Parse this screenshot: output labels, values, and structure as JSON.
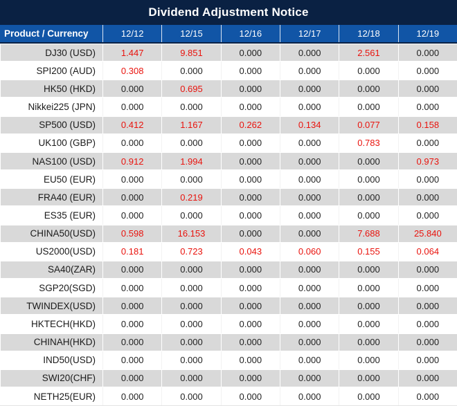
{
  "title": "Dividend Adjustment Notice",
  "colors": {
    "title_bar_bg": "#0a2143",
    "header_row_bg": "#1155a6",
    "stripe_row_bg": "#d9d9d9",
    "white_row_bg": "#ffffff",
    "header_text": "#ffffff",
    "value_zero_text": "#222222",
    "value_nonzero_text": "#e9130d"
  },
  "chart_data": {
    "type": "table",
    "title": "Dividend Adjustment Notice",
    "columns": [
      "Product / Currency",
      "12/12",
      "12/15",
      "12/16",
      "12/17",
      "12/18",
      "12/19"
    ],
    "rows": [
      {
        "product": "DJ30 (USD)",
        "values": [
          "1.447",
          "9.851",
          "0.000",
          "0.000",
          "2.561",
          "0.000"
        ]
      },
      {
        "product": "SPI200 (AUD)",
        "values": [
          "0.308",
          "0.000",
          "0.000",
          "0.000",
          "0.000",
          "0.000"
        ]
      },
      {
        "product": "HK50 (HKD)",
        "values": [
          "0.000",
          "0.695",
          "0.000",
          "0.000",
          "0.000",
          "0.000"
        ]
      },
      {
        "product": "Nikkei225 (JPN)",
        "values": [
          "0.000",
          "0.000",
          "0.000",
          "0.000",
          "0.000",
          "0.000"
        ]
      },
      {
        "product": "SP500 (USD)",
        "values": [
          "0.412",
          "1.167",
          "0.262",
          "0.134",
          "0.077",
          "0.158"
        ]
      },
      {
        "product": "UK100 (GBP)",
        "values": [
          "0.000",
          "0.000",
          "0.000",
          "0.000",
          "0.783",
          "0.000"
        ]
      },
      {
        "product": "NAS100 (USD)",
        "values": [
          "0.912",
          "1.994",
          "0.000",
          "0.000",
          "0.000",
          "0.973"
        ]
      },
      {
        "product": "EU50 (EUR)",
        "values": [
          "0.000",
          "0.000",
          "0.000",
          "0.000",
          "0.000",
          "0.000"
        ]
      },
      {
        "product": "FRA40 (EUR)",
        "values": [
          "0.000",
          "0.219",
          "0.000",
          "0.000",
          "0.000",
          "0.000"
        ]
      },
      {
        "product": "ES35 (EUR)",
        "values": [
          "0.000",
          "0.000",
          "0.000",
          "0.000",
          "0.000",
          "0.000"
        ]
      },
      {
        "product": "CHINA50(USD)",
        "values": [
          "0.598",
          "16.153",
          "0.000",
          "0.000",
          "7.688",
          "25.840"
        ]
      },
      {
        "product": "US2000(USD)",
        "values": [
          "0.181",
          "0.723",
          "0.043",
          "0.060",
          "0.155",
          "0.064"
        ]
      },
      {
        "product": "SA40(ZAR)",
        "values": [
          "0.000",
          "0.000",
          "0.000",
          "0.000",
          "0.000",
          "0.000"
        ]
      },
      {
        "product": "SGP20(SGD)",
        "values": [
          "0.000",
          "0.000",
          "0.000",
          "0.000",
          "0.000",
          "0.000"
        ]
      },
      {
        "product": "TWINDEX(USD)",
        "values": [
          "0.000",
          "0.000",
          "0.000",
          "0.000",
          "0.000",
          "0.000"
        ]
      },
      {
        "product": "HKTECH(HKD)",
        "values": [
          "0.000",
          "0.000",
          "0.000",
          "0.000",
          "0.000",
          "0.000"
        ]
      },
      {
        "product": "CHINAH(HKD)",
        "values": [
          "0.000",
          "0.000",
          "0.000",
          "0.000",
          "0.000",
          "0.000"
        ]
      },
      {
        "product": "IND50(USD)",
        "values": [
          "0.000",
          "0.000",
          "0.000",
          "0.000",
          "0.000",
          "0.000"
        ]
      },
      {
        "product": "SWI20(CHF)",
        "values": [
          "0.000",
          "0.000",
          "0.000",
          "0.000",
          "0.000",
          "0.000"
        ]
      },
      {
        "product": "NETH25(EUR)",
        "values": [
          "0.000",
          "0.000",
          "0.000",
          "0.000",
          "0.000",
          "0.000"
        ]
      }
    ]
  }
}
